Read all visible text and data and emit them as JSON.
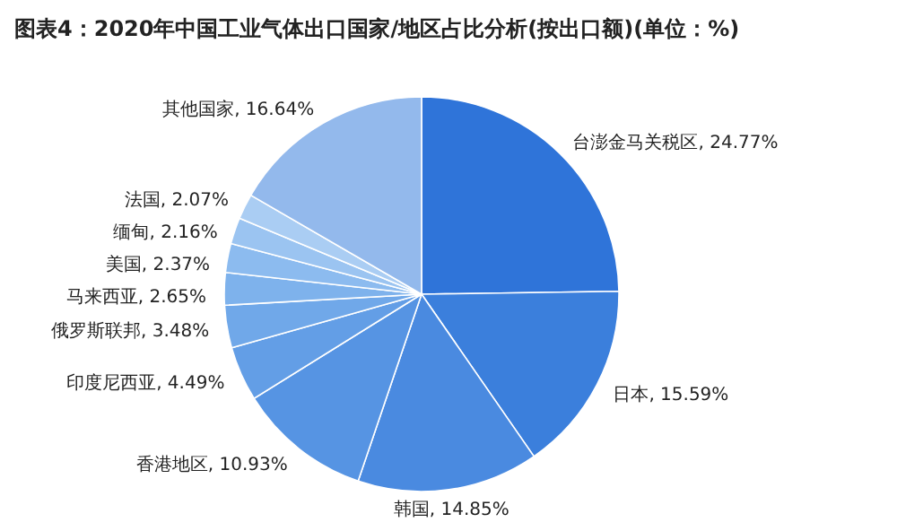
{
  "chart_data": {
    "type": "pie",
    "title": "图表4：2020年中国工业气体出口国家/地区占比分析(按出口额)(单位：%)",
    "categories": [
      "台澎金马关税区",
      "日本",
      "韩国",
      "香港地区",
      "印度尼西亚",
      "俄罗斯联邦",
      "马来西亚",
      "美国",
      "缅甸",
      "法国",
      "其他国家"
    ],
    "values": [
      24.77,
      15.59,
      14.85,
      10.93,
      4.49,
      3.48,
      2.65,
      2.37,
      2.16,
      2.07,
      16.64
    ],
    "colors": [
      "#2f74d9",
      "#3b7fdc",
      "#4a8ae0",
      "#5694e3",
      "#639ee6",
      "#70a8e9",
      "#7eb2ec",
      "#8cbbef",
      "#9bc4f1",
      "#aacdf3",
      "#93b9ec"
    ],
    "value_labels": [
      ", 24.77%",
      ", 15.59%",
      ", 14.85%",
      ", 10.93%",
      ", 4.49%",
      ", 3.48%",
      ", 2.65%",
      ", 2.37%",
      ", 2.16%",
      ", 2.07%",
      ", 16.64%"
    ],
    "legend": false
  }
}
